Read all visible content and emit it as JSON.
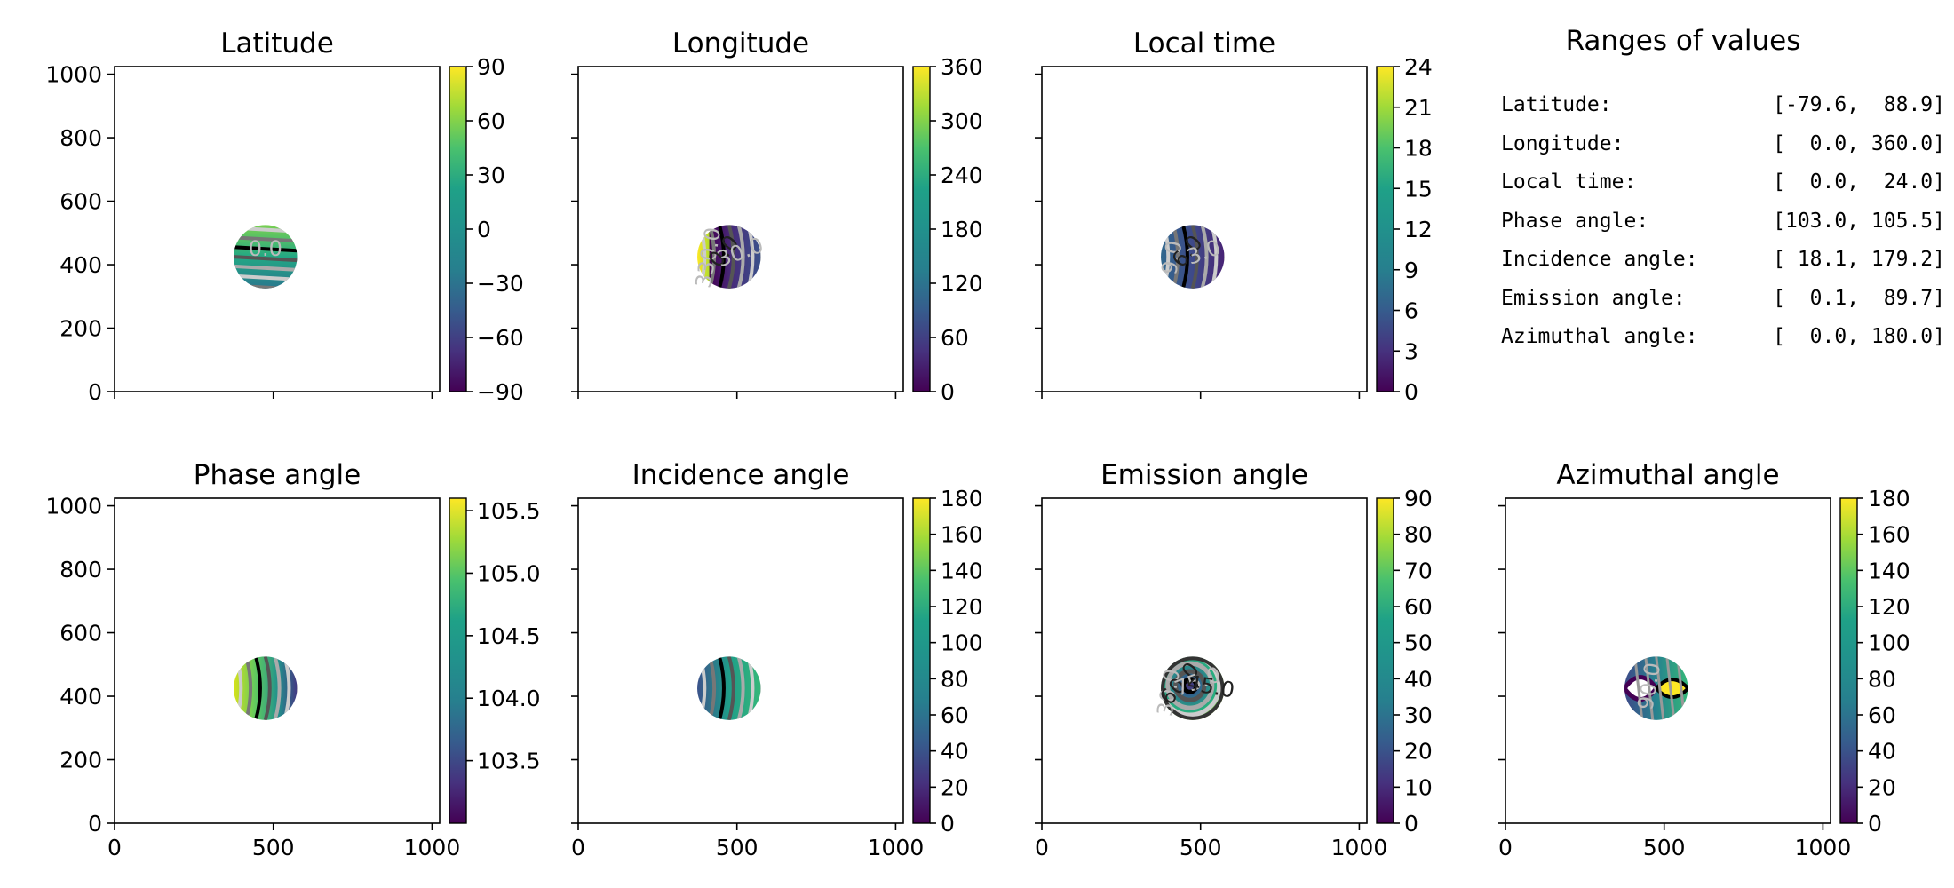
{
  "chart_data": {
    "type": "heatmap",
    "panels": [
      {
        "title": "Latitude",
        "xlim": [
          0,
          1024
        ],
        "ylim": [
          0,
          1024
        ],
        "x_ticks": [
          0,
          500,
          1000
        ],
        "y_ticks": [
          0,
          200,
          400,
          600,
          800,
          1000
        ],
        "show_x_ticklabels": false,
        "show_y_ticklabels": true,
        "colorbar": {
          "range": [
            -90,
            90
          ],
          "ticks": [
            "90",
            "60",
            "30",
            "0",
            "−30",
            "−60",
            "−90"
          ]
        },
        "contour_labels": [
          "0.0"
        ],
        "contour_orientation": "horizontal"
      },
      {
        "title": "Longitude",
        "xlim": [
          0,
          1024
        ],
        "ylim": [
          0,
          1024
        ],
        "x_ticks": [
          0,
          500,
          1000
        ],
        "y_ticks": [
          0,
          200,
          400,
          600,
          800,
          1000
        ],
        "show_x_ticklabels": false,
        "show_y_ticklabels": false,
        "colorbar": {
          "range": [
            0,
            360
          ],
          "ticks": [
            "360",
            "300",
            "240",
            "180",
            "120",
            "60",
            "0"
          ]
        },
        "contour_labels": [
          "330.0",
          "0.0",
          "30.0"
        ],
        "contour_orientation": "vertical"
      },
      {
        "title": "Local time",
        "xlim": [
          0,
          1024
        ],
        "ylim": [
          0,
          1024
        ],
        "x_ticks": [
          0,
          500,
          1000
        ],
        "y_ticks": [
          0,
          200,
          400,
          600,
          800,
          1000
        ],
        "show_x_ticklabels": false,
        "show_y_ticklabels": false,
        "colorbar": {
          "range": [
            0,
            24
          ],
          "ticks": [
            "24",
            "21",
            "18",
            "15",
            "12",
            "9",
            "6",
            "3",
            "0"
          ]
        },
        "contour_labels": [
          "9.0",
          "6.0",
          "3.0"
        ],
        "contour_orientation": "vertical"
      },
      {
        "title": "Phase angle",
        "xlim": [
          0,
          1024
        ],
        "ylim": [
          0,
          1024
        ],
        "x_ticks": [
          0,
          500,
          1000
        ],
        "y_ticks": [
          0,
          200,
          400,
          600,
          800,
          1000
        ],
        "show_x_ticklabels": true,
        "show_y_ticklabels": true,
        "colorbar": {
          "range": [
            103.0,
            105.6
          ],
          "ticks": [
            "105.5",
            "105.0",
            "104.5",
            "104.0",
            "103.5"
          ]
        },
        "contour_labels": [],
        "contour_orientation": "vertical"
      },
      {
        "title": "Incidence angle",
        "xlim": [
          0,
          1024
        ],
        "ylim": [
          0,
          1024
        ],
        "x_ticks": [
          0,
          500,
          1000
        ],
        "y_ticks": [
          0,
          200,
          400,
          600,
          800,
          1000
        ],
        "show_x_ticklabels": true,
        "show_y_ticklabels": false,
        "colorbar": {
          "range": [
            0,
            180
          ],
          "ticks": [
            "180",
            "160",
            "140",
            "120",
            "100",
            "80",
            "60",
            "40",
            "20",
            "0"
          ]
        },
        "contour_labels": [],
        "contour_orientation": "vertical"
      },
      {
        "title": "Emission angle",
        "xlim": [
          0,
          1024
        ],
        "ylim": [
          0,
          1024
        ],
        "x_ticks": [
          0,
          500,
          1000
        ],
        "y_ticks": [
          0,
          200,
          400,
          600,
          800,
          1000
        ],
        "show_x_ticklabels": true,
        "show_y_ticklabels": false,
        "colorbar": {
          "range": [
            0,
            90
          ],
          "ticks": [
            "90",
            "80",
            "70",
            "60",
            "50",
            "40",
            "30",
            "20",
            "10",
            "0"
          ]
        },
        "contour_labels": [
          "30.0",
          "60.0",
          "75.0",
          "45.0"
        ],
        "contour_orientation": "radial"
      },
      {
        "title": "Azimuthal angle",
        "xlim": [
          0,
          1024
        ],
        "ylim": [
          0,
          1024
        ],
        "x_ticks": [
          0,
          500,
          1000
        ],
        "y_ticks": [
          0,
          200,
          400,
          600,
          800,
          1000
        ],
        "show_x_ticklabels": true,
        "show_y_ticklabels": false,
        "colorbar": {
          "range": [
            0,
            180
          ],
          "ticks": [
            "180",
            "160",
            "140",
            "120",
            "100",
            "80",
            "60",
            "40",
            "20",
            "0"
          ]
        },
        "contour_labels": [
          "90.0"
        ],
        "contour_orientation": "azimuthal"
      }
    ],
    "disc": {
      "center_x": 475,
      "center_y": 425,
      "radius": 100
    },
    "colormap": "viridis",
    "ranges_table": {
      "title": "Ranges of values",
      "rows": [
        {
          "label": "Latitude:",
          "value": "[-79.6,  88.9]"
        },
        {
          "label": "Longitude:",
          "value": "[  0.0, 360.0]"
        },
        {
          "label": "Local time:",
          "value": "[  0.0,  24.0]"
        },
        {
          "label": "Phase angle:",
          "value": "[103.0, 105.5]"
        },
        {
          "label": "Incidence angle:",
          "value": "[ 18.1, 179.2]"
        },
        {
          "label": "Emission angle:",
          "value": "[  0.1,  89.7]"
        },
        {
          "label": "Azimuthal angle:",
          "value": "[  0.0, 180.0]"
        }
      ]
    }
  }
}
